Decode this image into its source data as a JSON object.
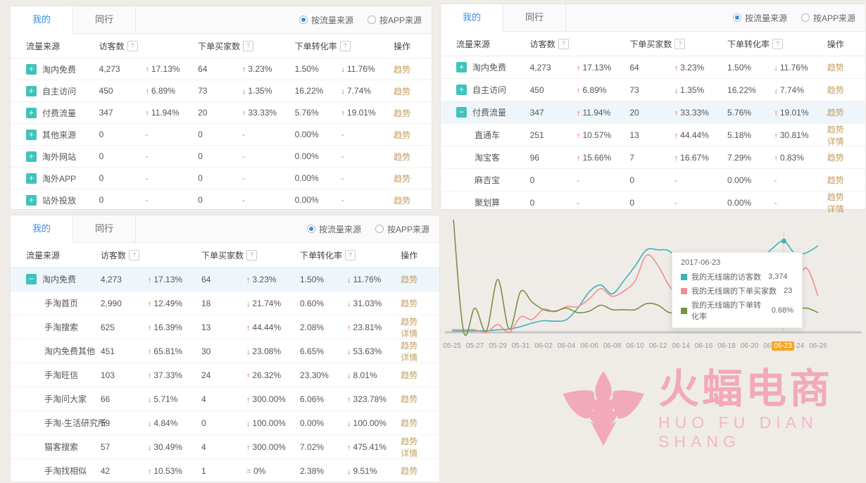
{
  "colors": {
    "accent_blue": "#3e8ddb",
    "up_red": "#e25a50",
    "down_green": "#2fae3c",
    "teal_icon": "#41c3bb",
    "action_link": "#c49e61",
    "highlight_row": "#eef6fc",
    "date_highlight_orange": "#f5a623",
    "logo_pink": "#f2a9ba"
  },
  "common": {
    "help_icon": "?",
    "up_arrow": "↑",
    "down_arrow": "↓",
    "flat_sign": "=",
    "dash": "-",
    "expand_icon": "+",
    "collapse_icon": "−"
  },
  "panels": [
    {
      "tabs": [
        {
          "label": "我的",
          "active": true
        },
        {
          "label": "同行",
          "active": false
        }
      ],
      "radios": [
        {
          "label": "按流量来源",
          "selected": true
        },
        {
          "label": "按APP来源",
          "selected": false
        }
      ],
      "columns": [
        {
          "label": "流量来源"
        },
        {
          "label": "访客数",
          "help": true
        },
        {
          "label": "下单买家数",
          "help": true
        },
        {
          "label": "下单转化率",
          "help": true
        },
        {
          "label": "操作"
        }
      ],
      "rows": [
        {
          "icon": "plus",
          "source": "淘内免费",
          "visitors": "4,273",
          "v_chg": {
            "dir": "up",
            "text": "17.13%"
          },
          "buyers": "64",
          "b_chg": {
            "dir": "up",
            "text": "3.23%"
          },
          "rate": "1.50%",
          "r_chg": {
            "dir": "down",
            "text": "11.76%"
          },
          "actions": [
            "趋势"
          ]
        },
        {
          "icon": "plus",
          "source": "自主访问",
          "visitors": "450",
          "v_chg": {
            "dir": "up",
            "text": "6.89%"
          },
          "buyers": "73",
          "b_chg": {
            "dir": "down",
            "text": "1.35%"
          },
          "rate": "16.22%",
          "r_chg": {
            "dir": "down",
            "text": "7.74%"
          },
          "actions": [
            "趋势"
          ]
        },
        {
          "icon": "plus",
          "source": "付费流量",
          "visitors": "347",
          "v_chg": {
            "dir": "up",
            "text": "11.94%"
          },
          "buyers": "20",
          "b_chg": {
            "dir": "up",
            "text": "33.33%"
          },
          "rate": "5.76%",
          "r_chg": {
            "dir": "up",
            "text": "19.01%"
          },
          "actions": [
            "趋势"
          ]
        },
        {
          "icon": "plus",
          "source": "其他来源",
          "visitors": "0",
          "v_chg": {
            "dir": "none",
            "text": "-"
          },
          "buyers": "0",
          "b_chg": {
            "dir": "none",
            "text": "-"
          },
          "rate": "0.00%",
          "r_chg": {
            "dir": "none",
            "text": "-"
          },
          "actions": [
            "趋势"
          ]
        },
        {
          "icon": "plus",
          "source": "淘外网站",
          "visitors": "0",
          "v_chg": {
            "dir": "none",
            "text": "-"
          },
          "buyers": "0",
          "b_chg": {
            "dir": "none",
            "text": "-"
          },
          "rate": "0.00%",
          "r_chg": {
            "dir": "none",
            "text": "-"
          },
          "actions": [
            "趋势"
          ]
        },
        {
          "icon": "plus",
          "source": "淘外APP",
          "visitors": "0",
          "v_chg": {
            "dir": "none",
            "text": "-"
          },
          "buyers": "0",
          "b_chg": {
            "dir": "none",
            "text": "-"
          },
          "rate": "0.00%",
          "r_chg": {
            "dir": "none",
            "text": "-"
          },
          "actions": [
            "趋势"
          ]
        },
        {
          "icon": "plus",
          "source": "站外投放",
          "visitors": "0",
          "v_chg": {
            "dir": "none",
            "text": "-"
          },
          "buyers": "0",
          "b_chg": {
            "dir": "none",
            "text": "-"
          },
          "rate": "0.00%",
          "r_chg": {
            "dir": "none",
            "text": "-"
          },
          "actions": [
            "趋势"
          ]
        }
      ]
    },
    {
      "tabs": [
        {
          "label": "我的",
          "active": true
        },
        {
          "label": "同行",
          "active": false
        }
      ],
      "radios": [
        {
          "label": "按流量来源",
          "selected": true
        },
        {
          "label": "按APP来源",
          "selected": false
        }
      ],
      "columns": [
        {
          "label": "流量来源"
        },
        {
          "label": "访客数",
          "help": true
        },
        {
          "label": "下单买家数",
          "help": true
        },
        {
          "label": "下单转化率",
          "help": true
        },
        {
          "label": "操作"
        }
      ],
      "rows": [
        {
          "icon": "plus",
          "source": "淘内免费",
          "visitors": "4,273",
          "v_chg": {
            "dir": "up",
            "text": "17.13%"
          },
          "buyers": "64",
          "b_chg": {
            "dir": "up",
            "text": "3.23%"
          },
          "rate": "1.50%",
          "r_chg": {
            "dir": "down",
            "text": "11.76%"
          },
          "actions": [
            "趋势"
          ]
        },
        {
          "icon": "plus",
          "source": "自主访问",
          "visitors": "450",
          "v_chg": {
            "dir": "up",
            "text": "6.89%"
          },
          "buyers": "73",
          "b_chg": {
            "dir": "down",
            "text": "1.35%"
          },
          "rate": "16.22%",
          "r_chg": {
            "dir": "down",
            "text": "7.74%"
          },
          "actions": [
            "趋势"
          ]
        },
        {
          "icon": "minus",
          "highlight": true,
          "source": "付费流量",
          "visitors": "347",
          "v_chg": {
            "dir": "up",
            "text": "11.94%"
          },
          "buyers": "20",
          "b_chg": {
            "dir": "up",
            "text": "33.33%"
          },
          "rate": "5.76%",
          "r_chg": {
            "dir": "up",
            "text": "19.01%"
          },
          "actions": [
            "趋势"
          ]
        },
        {
          "sub": true,
          "source": "直通车",
          "visitors": "251",
          "v_chg": {
            "dir": "up",
            "text": "10.57%"
          },
          "buyers": "13",
          "b_chg": {
            "dir": "up",
            "text": "44.44%"
          },
          "rate": "5.18%",
          "r_chg": {
            "dir": "up",
            "text": "30.81%"
          },
          "actions": [
            "趋势",
            "详情"
          ]
        },
        {
          "sub": true,
          "source": "淘宝客",
          "visitors": "96",
          "v_chg": {
            "dir": "up",
            "text": "15.66%"
          },
          "buyers": "7",
          "b_chg": {
            "dir": "up",
            "text": "16.67%"
          },
          "rate": "7.29%",
          "r_chg": {
            "dir": "up",
            "text": "0.83%"
          },
          "actions": [
            "趋势"
          ]
        },
        {
          "sub": true,
          "source": "麻吉宝",
          "visitors": "0",
          "v_chg": {
            "dir": "none",
            "text": "-"
          },
          "buyers": "0",
          "b_chg": {
            "dir": "none",
            "text": "-"
          },
          "rate": "0.00%",
          "r_chg": {
            "dir": "none",
            "text": "-"
          },
          "actions": [
            "趋势"
          ]
        },
        {
          "sub": true,
          "source": "聚划算",
          "visitors": "0",
          "v_chg": {
            "dir": "none",
            "text": "-"
          },
          "buyers": "0",
          "b_chg": {
            "dir": "none",
            "text": "-"
          },
          "rate": "0.00%",
          "r_chg": {
            "dir": "none",
            "text": "-"
          },
          "actions": [
            "趋势",
            "详情"
          ]
        }
      ]
    },
    {
      "tabs": [
        {
          "label": "我的",
          "active": true
        },
        {
          "label": "同行",
          "active": false
        }
      ],
      "radios": [
        {
          "label": "按流量来源",
          "selected": true
        },
        {
          "label": "按APP来源",
          "selected": false
        }
      ],
      "columns": [
        {
          "label": "流量来源"
        },
        {
          "label": "访客数",
          "help": true
        },
        {
          "label": "下单买家数",
          "help": true
        },
        {
          "label": "下单转化率",
          "help": true
        },
        {
          "label": "操作"
        }
      ],
      "rows": [
        {
          "icon": "minus",
          "highlight": true,
          "source": "淘内免费",
          "visitors": "4,273",
          "v_chg": {
            "dir": "up",
            "text": "17.13%"
          },
          "buyers": "64",
          "b_chg": {
            "dir": "up",
            "text": "3.23%"
          },
          "rate": "1.50%",
          "r_chg": {
            "dir": "down",
            "text": "11.76%"
          },
          "actions": [
            "趋势"
          ]
        },
        {
          "sub": true,
          "source": "手淘首页",
          "visitors": "2,990",
          "v_chg": {
            "dir": "up",
            "text": "12.49%"
          },
          "buyers": "18",
          "b_chg": {
            "dir": "down",
            "text": "21.74%"
          },
          "rate": "0.60%",
          "r_chg": {
            "dir": "down",
            "text": "31.03%"
          },
          "actions": [
            "趋势"
          ]
        },
        {
          "sub": true,
          "source": "手淘搜索",
          "visitors": "625",
          "v_chg": {
            "dir": "up",
            "text": "16.39%"
          },
          "buyers": "13",
          "b_chg": {
            "dir": "up",
            "text": "44.44%"
          },
          "rate": "2.08%",
          "r_chg": {
            "dir": "up",
            "text": "23.81%"
          },
          "actions": [
            "趋势",
            "详情"
          ]
        },
        {
          "sub": true,
          "source": "淘内免费其他",
          "visitors": "451",
          "v_chg": {
            "dir": "up",
            "text": "65.81%"
          },
          "buyers": "30",
          "b_chg": {
            "dir": "down",
            "text": "23.08%"
          },
          "rate": "6.65%",
          "r_chg": {
            "dir": "down",
            "text": "53.63%"
          },
          "actions": [
            "趋势",
            "详情"
          ]
        },
        {
          "sub": true,
          "source": "手淘旺信",
          "visitors": "103",
          "v_chg": {
            "dir": "up",
            "text": "37.33%"
          },
          "buyers": "24",
          "b_chg": {
            "dir": "up",
            "text": "26.32%"
          },
          "rate": "23.30%",
          "r_chg": {
            "dir": "down",
            "text": "8.01%"
          },
          "actions": [
            "趋势"
          ]
        },
        {
          "sub": true,
          "source": "手淘问大家",
          "visitors": "66",
          "v_chg": {
            "dir": "down",
            "text": "5.71%"
          },
          "buyers": "4",
          "b_chg": {
            "dir": "up",
            "text": "300.00%"
          },
          "rate": "6.06%",
          "r_chg": {
            "dir": "up",
            "text": "323.78%"
          },
          "actions": [
            "趋势"
          ]
        },
        {
          "sub": true,
          "source": "手淘-生活研究所",
          "visitors": "59",
          "v_chg": {
            "dir": "down",
            "text": "4.84%"
          },
          "buyers": "0",
          "b_chg": {
            "dir": "down",
            "text": "100.00%"
          },
          "rate": "0.00%",
          "r_chg": {
            "dir": "down",
            "text": "100.00%"
          },
          "actions": [
            "趋势"
          ]
        },
        {
          "sub": true,
          "source": "猫客搜索",
          "visitors": "57",
          "v_chg": {
            "dir": "down",
            "text": "30.49%"
          },
          "buyers": "4",
          "b_chg": {
            "dir": "up",
            "text": "300.00%"
          },
          "rate": "7.02%",
          "r_chg": {
            "dir": "up",
            "text": "475.41%"
          },
          "actions": [
            "趋势",
            "详情"
          ]
        },
        {
          "sub": true,
          "source": "手淘找相似",
          "visitors": "42",
          "v_chg": {
            "dir": "up",
            "text": "10.53%"
          },
          "buyers": "1",
          "b_chg": {
            "dir": "flat",
            "text": "0%"
          },
          "rate": "2.38%",
          "r_chg": {
            "dir": "down",
            "text": "9.51%"
          },
          "actions": [
            "趋势"
          ]
        }
      ]
    }
  ],
  "chart_data": {
    "type": "line",
    "title": "",
    "xlabel": "",
    "ylabel": "",
    "grid": true,
    "y_axis_labels": "hidden",
    "x_tick_every": 2,
    "x": [
      "05-25",
      "05-26",
      "05-27",
      "05-28",
      "05-29",
      "05-30",
      "05-31",
      "06-01",
      "06-02",
      "06-03",
      "06-04",
      "06-05",
      "06-06",
      "06-07",
      "06-08",
      "06-09",
      "06-10",
      "06-11",
      "06-12",
      "06-13",
      "06-14",
      "06-15",
      "06-16",
      "06-17",
      "06-18",
      "06-19",
      "06-20",
      "06-21",
      "06-22",
      "06-23",
      "06-24",
      "06-25",
      "06-26"
    ],
    "series": [
      {
        "name": "我的无线端的访客数",
        "color": "#3fb1b8",
        "ymax": 3800,
        "values": [
          52,
          48,
          60,
          55,
          95,
          120,
          210,
          340,
          430,
          410,
          470,
          900,
          1500,
          1750,
          1420,
          1900,
          2450,
          3050,
          3050,
          3000,
          2500,
          2150,
          1450,
          2100,
          2450,
          2300,
          2500,
          2700,
          3100,
          3374,
          2900,
          2950,
          3200
        ]
      },
      {
        "name": "我的无线端的下单买家数",
        "color": "#f08f8f",
        "ymax": 40,
        "values": [
          1,
          1,
          1,
          0,
          3,
          0,
          6,
          5,
          9,
          8,
          10,
          10,
          13,
          17,
          14,
          16,
          20,
          30,
          26,
          18,
          14,
          12,
          8,
          14,
          16,
          15,
          16,
          18,
          21,
          23,
          20,
          25,
          14
        ]
      },
      {
        "name": "我的无线端的下单转化率",
        "color": "#78923f",
        "ymax": 3.4,
        "unit": "%",
        "values": [
          6.0,
          0.05,
          0.8,
          0.05,
          1.75,
          0.1,
          1.35,
          1.0,
          0.75,
          0.7,
          0.8,
          0.65,
          0.7,
          0.9,
          0.75,
          0.75,
          0.75,
          0.95,
          0.9,
          0.65,
          0.7,
          0.95,
          0.45,
          0.65,
          0.8,
          0.75,
          0.7,
          0.75,
          0.8,
          0.68,
          0.75,
          0.8,
          0.65
        ]
      }
    ],
    "marker": {
      "index": 29,
      "date": "06-23"
    },
    "highlight_label": {
      "text": "06-23",
      "color": "#f5a623"
    },
    "tooltip": {
      "title": "2017-06-23",
      "items": [
        {
          "label": "我的无线端的访客数",
          "value": "3,374",
          "color": "#3fb1b8"
        },
        {
          "label": "我的无线端的下单买家数",
          "value": "23",
          "color": "#f08f8f"
        },
        {
          "label": "我的无线端的下单转化率",
          "value": "0.68%",
          "color": "#78923f"
        }
      ]
    }
  },
  "logo": {
    "title": "火蝠电商",
    "subtitle": "HUO FU DIAN SHANG"
  }
}
